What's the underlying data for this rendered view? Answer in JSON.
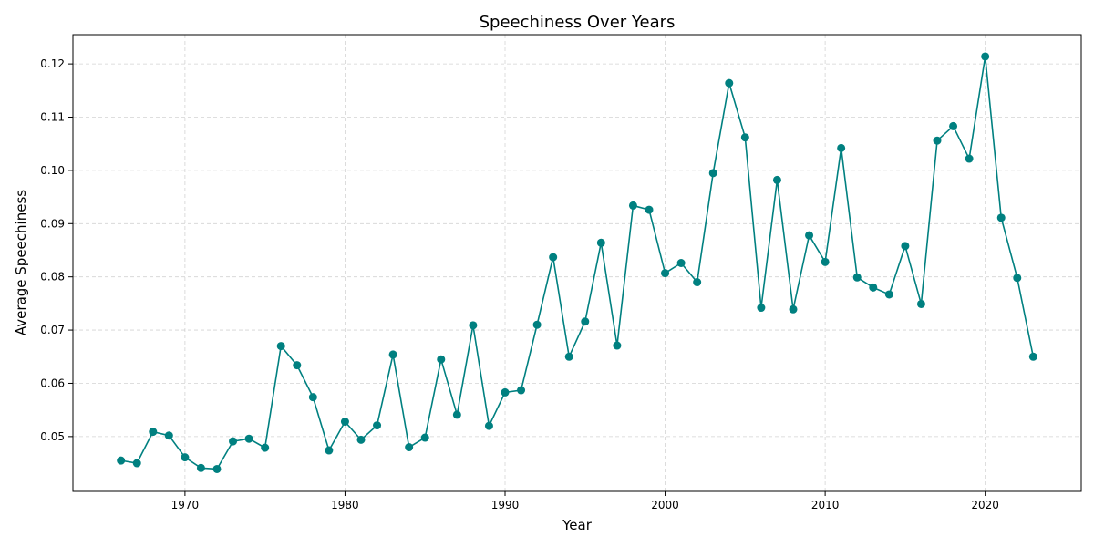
{
  "chart_data": {
    "type": "line",
    "title": "Speechiness Over Years",
    "xlabel": "Year",
    "ylabel": "Average Speechiness",
    "xlim": [
      1963,
      2026
    ],
    "ylim": [
      0.0397,
      0.1255
    ],
    "xticks": [
      1970,
      1980,
      1990,
      2000,
      2010,
      2020
    ],
    "yticks": [
      0.05,
      0.06,
      0.07,
      0.08,
      0.09,
      0.1,
      0.11,
      0.12
    ],
    "ytick_labels": [
      "0.05",
      "0.06",
      "0.07",
      "0.08",
      "0.09",
      "0.10",
      "0.11",
      "0.12"
    ],
    "grid": true,
    "series": [
      {
        "color": "#008080",
        "marker": "circle",
        "x": [
          1966,
          1967,
          1968,
          1969,
          1970,
          1971,
          1972,
          1973,
          1974,
          1975,
          1976,
          1977,
          1978,
          1979,
          1980,
          1981,
          1982,
          1983,
          1984,
          1985,
          1986,
          1987,
          1988,
          1989,
          1990,
          1991,
          1992,
          1993,
          1994,
          1995,
          1996,
          1997,
          1998,
          1999,
          2000,
          2001,
          2002,
          2003,
          2004,
          2005,
          2006,
          2007,
          2008,
          2009,
          2010,
          2011,
          2012,
          2013,
          2014,
          2015,
          2016,
          2017,
          2018,
          2019,
          2020,
          2021,
          2022,
          2023
        ],
        "y": [
          0.0455,
          0.045,
          0.0509,
          0.0502,
          0.0461,
          0.0441,
          0.0439,
          0.0491,
          0.0496,
          0.0479,
          0.067,
          0.0634,
          0.0574,
          0.0474,
          0.0528,
          0.0494,
          0.0521,
          0.0654,
          0.048,
          0.0498,
          0.0645,
          0.0541,
          0.0709,
          0.052,
          0.0583,
          0.0587,
          0.071,
          0.0837,
          0.065,
          0.0716,
          0.0864,
          0.0671,
          0.0934,
          0.0926,
          0.0807,
          0.0826,
          0.079,
          0.0995,
          0.1164,
          0.1062,
          0.0742,
          0.0982,
          0.0739,
          0.0878,
          0.0828,
          0.1042,
          0.0799,
          0.078,
          0.0767,
          0.0858,
          0.0749,
          0.1056,
          0.1083,
          0.1022,
          0.1214,
          0.0911,
          0.0798,
          0.065
        ]
      }
    ]
  }
}
